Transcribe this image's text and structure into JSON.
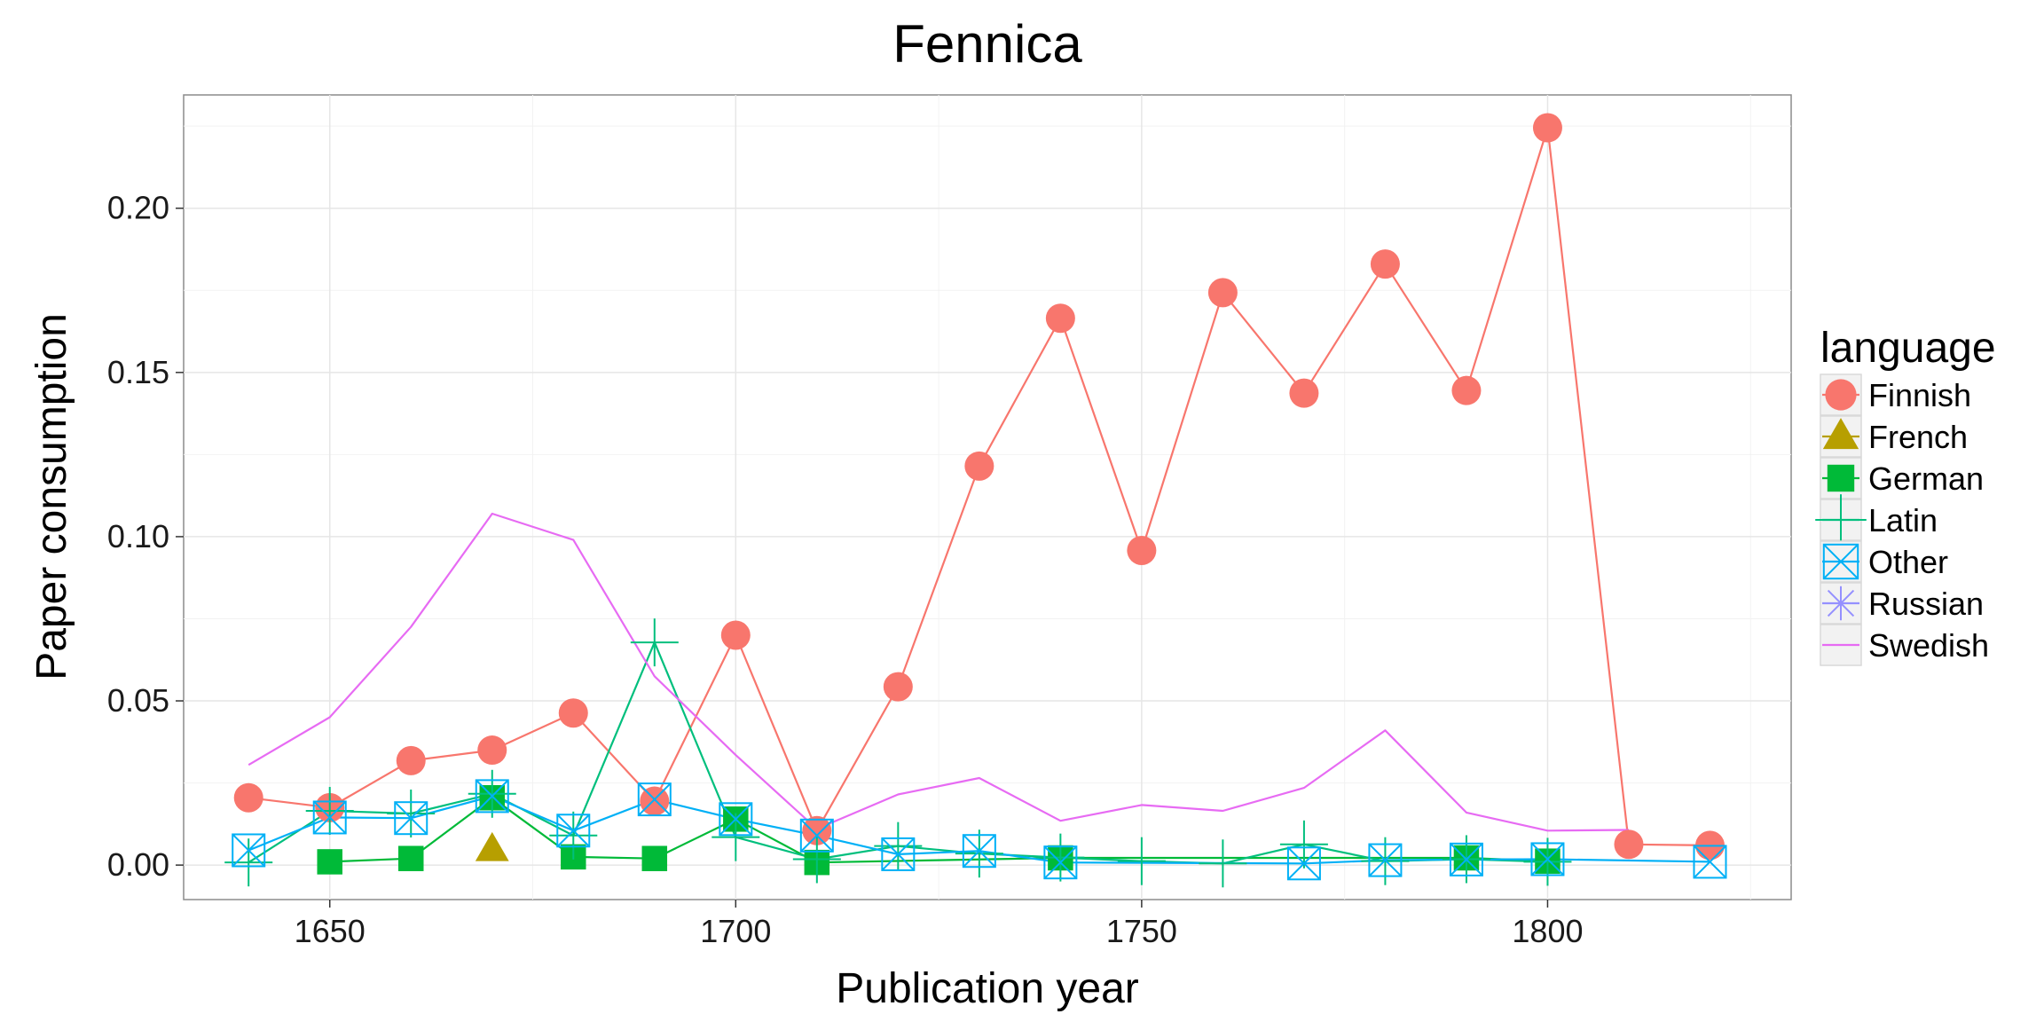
{
  "chart_data": {
    "type": "line",
    "title": "Fennica",
    "xlabel": "Publication year",
    "ylabel": "Paper consumption",
    "xlim": [
      1632,
      1830
    ],
    "ylim": [
      -0.0105,
      0.2345
    ],
    "x_ticks": [
      1650,
      1700,
      1750,
      1800
    ],
    "x_tick_labels": [
      "1650",
      "1700",
      "1750",
      "1800"
    ],
    "y_ticks": [
      0.0,
      0.05,
      0.1,
      0.15,
      0.2
    ],
    "y_tick_labels": [
      "0.00",
      "0.05",
      "0.10",
      "0.15",
      "0.20"
    ],
    "grid": true,
    "legend": {
      "title": "language",
      "position": "right"
    },
    "series": [
      {
        "name": "Finnish",
        "color": "#F8766D",
        "marker": "circle",
        "points": [
          [
            1640,
            0.0205
          ],
          [
            1650,
            0.0175
          ],
          [
            1660,
            0.0318
          ],
          [
            1670,
            0.035
          ],
          [
            1680,
            0.0463
          ],
          [
            1690,
            0.0195
          ],
          [
            1700,
            0.07
          ],
          [
            1710,
            0.0105
          ],
          [
            1720,
            0.0543
          ],
          [
            1730,
            0.1215
          ],
          [
            1740,
            0.1665
          ],
          [
            1750,
            0.0958
          ],
          [
            1760,
            0.1743
          ],
          [
            1770,
            0.1437
          ],
          [
            1780,
            0.183
          ],
          [
            1790,
            0.1445
          ],
          [
            1800,
            0.2245
          ],
          [
            1810,
            0.0063
          ],
          [
            1820,
            0.006
          ]
        ]
      },
      {
        "name": "French",
        "color": "#B79F00",
        "marker": "triangle",
        "points": [
          [
            1670,
            0.0048
          ]
        ]
      },
      {
        "name": "German",
        "color": "#00BA38",
        "marker": "square",
        "points": [
          [
            1650,
            0.001
          ],
          [
            1660,
            0.002
          ],
          [
            1670,
            0.0205
          ],
          [
            1680,
            0.0025
          ],
          [
            1690,
            0.002
          ],
          [
            1700,
            0.014
          ],
          [
            1710,
            0.0008
          ],
          [
            1740,
            0.0022
          ],
          [
            1790,
            0.0022
          ],
          [
            1800,
            0.0012
          ]
        ]
      },
      {
        "name": "Latin",
        "color": "#00BF7D",
        "marker": "plus",
        "points": [
          [
            1640,
            0.0008
          ],
          [
            1650,
            0.0165
          ],
          [
            1660,
            0.0157
          ],
          [
            1670,
            0.0217
          ],
          [
            1680,
            0.009
          ],
          [
            1690,
            0.0678
          ],
          [
            1700,
            0.0085
          ],
          [
            1710,
            0.0018
          ],
          [
            1720,
            0.0058
          ],
          [
            1730,
            0.0035
          ],
          [
            1740,
            0.0023
          ],
          [
            1750,
            0.0012
          ],
          [
            1760,
            0.0005
          ],
          [
            1770,
            0.0063
          ],
          [
            1780,
            0.0012
          ],
          [
            1790,
            0.0018
          ],
          [
            1800,
            0.001
          ]
        ]
      },
      {
        "name": "Other",
        "color": "#00B0F6",
        "marker": "square-cross",
        "points": [
          [
            1640,
            0.0045
          ],
          [
            1650,
            0.0145
          ],
          [
            1660,
            0.0143
          ],
          [
            1670,
            0.021
          ],
          [
            1680,
            0.0105
          ],
          [
            1690,
            0.02
          ],
          [
            1700,
            0.014
          ],
          [
            1710,
            0.009
          ],
          [
            1720,
            0.0033
          ],
          [
            1730,
            0.0043
          ],
          [
            1740,
            0.0008
          ],
          [
            1770,
            0.0005
          ],
          [
            1780,
            0.0015
          ],
          [
            1790,
            0.0017
          ],
          [
            1800,
            0.0018
          ],
          [
            1820,
            0.001
          ]
        ]
      },
      {
        "name": "Russian",
        "color": "#9590FF",
        "marker": "asterisk",
        "points": []
      },
      {
        "name": "Swedish",
        "color": "#E76BF3",
        "marker": "none",
        "points": [
          [
            1640,
            0.0305
          ],
          [
            1650,
            0.045
          ],
          [
            1660,
            0.0725
          ],
          [
            1670,
            0.107
          ],
          [
            1680,
            0.099
          ],
          [
            1690,
            0.0575
          ],
          [
            1700,
            0.0335
          ],
          [
            1710,
            0.011
          ],
          [
            1720,
            0.0215
          ],
          [
            1730,
            0.0265
          ],
          [
            1740,
            0.0135
          ],
          [
            1750,
            0.0183
          ],
          [
            1760,
            0.0165
          ],
          [
            1770,
            0.0235
          ],
          [
            1780,
            0.041
          ],
          [
            1790,
            0.016
          ],
          [
            1800,
            0.0105
          ],
          [
            1810,
            0.0107
          ]
        ]
      }
    ]
  }
}
